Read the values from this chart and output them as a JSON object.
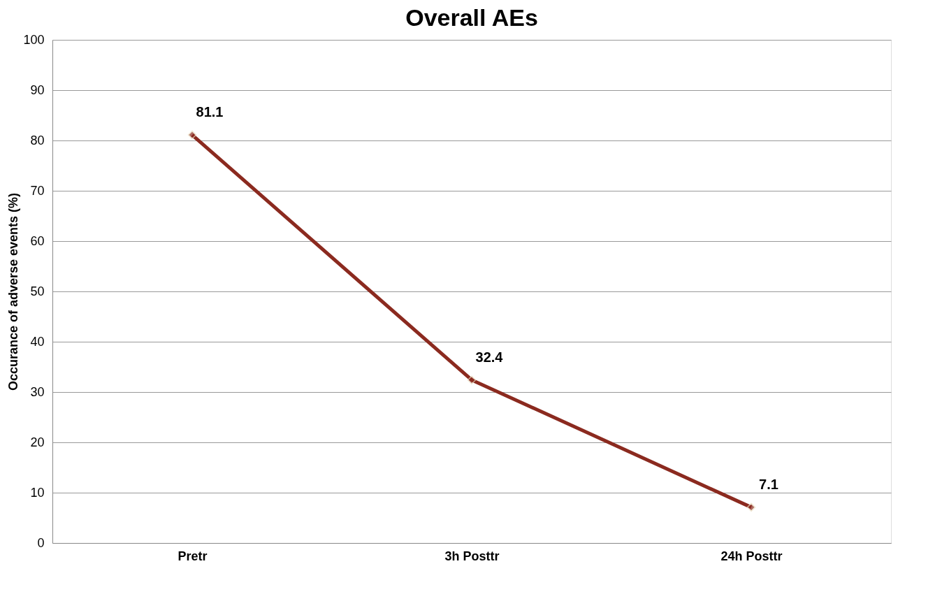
{
  "chart_data": {
    "type": "line",
    "title": "Overall AEs",
    "ylabel": "Occurance of adverse events (%)",
    "categories": [
      "Pretr",
      "3h Posttr",
      "24h Posttr"
    ],
    "series": [
      {
        "color": "#8b2a1f",
        "values": [
          81.1,
          32.4,
          7.1
        ]
      }
    ],
    "ylim": [
      0,
      100
    ],
    "yticks": [
      0,
      10,
      20,
      30,
      40,
      50,
      60,
      70,
      80,
      90,
      100
    ],
    "grid": "y",
    "legend": false,
    "marker": "diamond",
    "line_style": "solid",
    "data_labels": true
  }
}
